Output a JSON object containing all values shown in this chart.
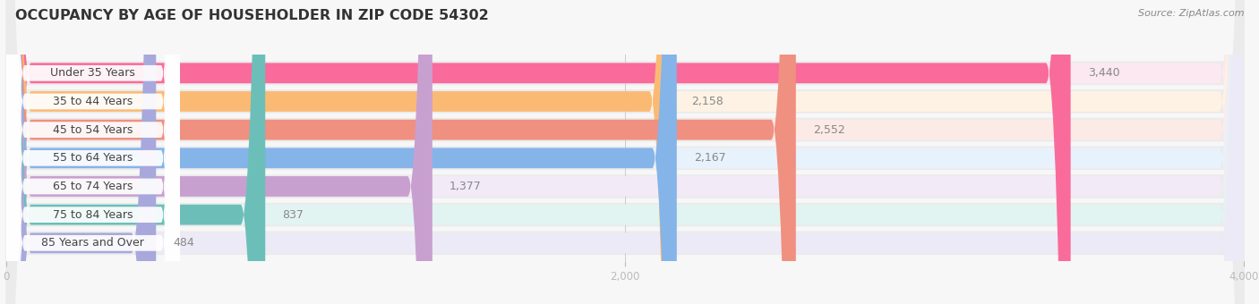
{
  "title": "OCCUPANCY BY AGE OF HOUSEHOLDER IN ZIP CODE 54302",
  "source": "Source: ZipAtlas.com",
  "categories": [
    "Under 35 Years",
    "35 to 44 Years",
    "45 to 54 Years",
    "55 to 64 Years",
    "65 to 74 Years",
    "75 to 84 Years",
    "85 Years and Over"
  ],
  "values": [
    3440,
    2158,
    2552,
    2167,
    1377,
    837,
    484
  ],
  "bar_colors": [
    "#F96B9B",
    "#FBBA74",
    "#F09080",
    "#85B4E8",
    "#C8A0D0",
    "#6CBFB8",
    "#A8A8DC"
  ],
  "bar_bg_colors": [
    "#FCE8F0",
    "#FEF2E4",
    "#FCEAE6",
    "#E8F2FC",
    "#F2EAF6",
    "#E2F4F2",
    "#ECEAF6"
  ],
  "row_bg_color": "#EFEFEF",
  "xlim": [
    0,
    4000
  ],
  "xticks": [
    0,
    2000,
    4000
  ],
  "background_color": "#F7F7F7",
  "title_fontsize": 11.5,
  "label_fontsize": 9,
  "value_fontsize": 9,
  "source_fontsize": 8
}
